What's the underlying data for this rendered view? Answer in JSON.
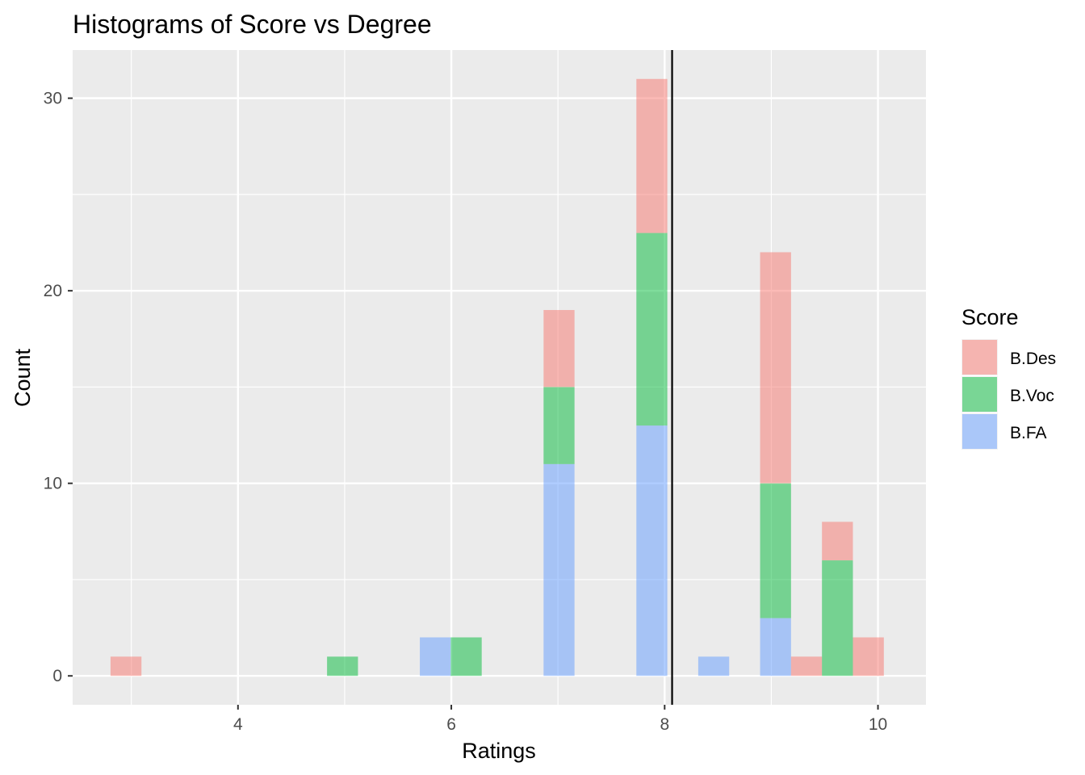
{
  "chart_data": {
    "type": "bar",
    "stacked": true,
    "title": "Histograms of Score vs Degree",
    "xlabel": "Ratings",
    "ylabel": "Count",
    "xlim": [
      2.45,
      10.45
    ],
    "ylim": [
      -1.5,
      32.5
    ],
    "x_ticks": [
      4,
      6,
      8,
      10
    ],
    "y_ticks": [
      0,
      10,
      20,
      30
    ],
    "bin_width": 0.29,
    "bins": [
      2.95,
      3.24,
      3.53,
      3.82,
      4.11,
      4.4,
      4.69,
      4.98,
      5.27,
      5.56,
      5.85,
      6.14,
      6.43,
      6.72,
      7.01,
      7.3,
      7.59,
      7.88,
      8.17,
      8.46,
      8.75,
      9.04,
      9.33,
      9.62,
      9.91
    ],
    "series": [
      {
        "name": "B.FA",
        "color": "#619CFF",
        "values": [
          0,
          0,
          0,
          0,
          0,
          0,
          0,
          0,
          0,
          0,
          2,
          0,
          0,
          0,
          11,
          0,
          0,
          13,
          0,
          1,
          0,
          3,
          0,
          0,
          0
        ]
      },
      {
        "name": "B.Voc",
        "color": "#00BA38",
        "values": [
          0,
          0,
          0,
          0,
          0,
          0,
          0,
          1,
          0,
          0,
          0,
          2,
          0,
          0,
          4,
          0,
          0,
          10,
          0,
          0,
          0,
          7,
          0,
          6,
          0
        ]
      },
      {
        "name": "B.Des",
        "color": "#F8766D",
        "values": [
          1,
          0,
          0,
          0,
          0,
          0,
          0,
          0,
          0,
          0,
          0,
          0,
          0,
          0,
          4,
          0,
          0,
          8,
          0,
          0,
          0,
          12,
          1,
          2,
          2
        ]
      }
    ],
    "vline_x": 8.07,
    "legend": {
      "title": "Score",
      "order": [
        "B.Des",
        "B.Voc",
        "B.FA"
      ],
      "position": "right"
    },
    "grid": true,
    "panel_background": "#EBEBEB",
    "opacity": 0.5
  }
}
